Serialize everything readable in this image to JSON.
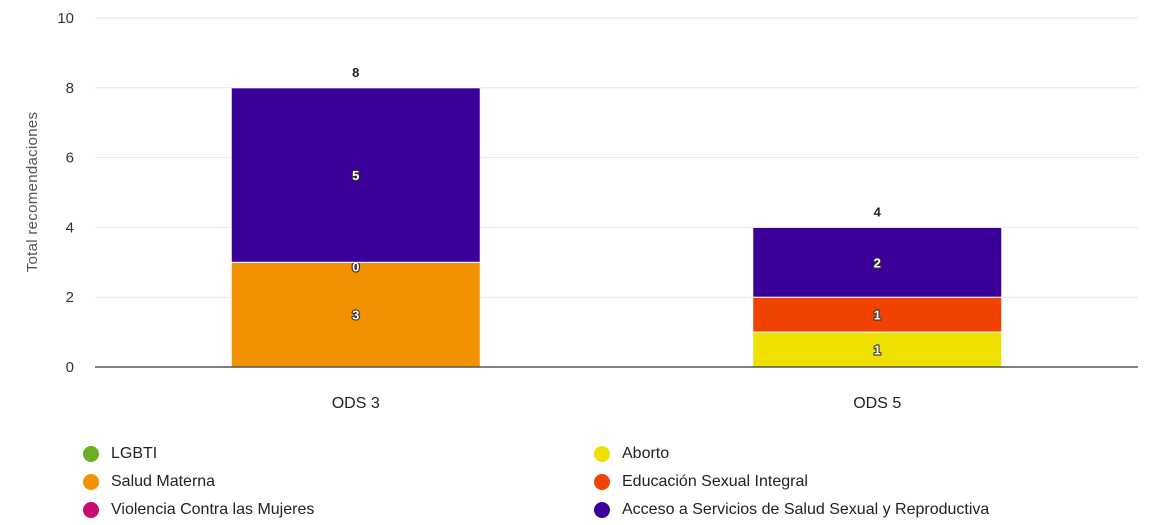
{
  "chart_data": {
    "type": "bar",
    "stacked": true,
    "title": "",
    "xlabel": "",
    "ylabel": "Total recomendaciones",
    "ylim": [
      0,
      10
    ],
    "yticks": [
      0,
      2,
      4,
      6,
      8,
      10
    ],
    "categories": [
      "ODS 3",
      "ODS 5"
    ],
    "totals": [
      8,
      4
    ],
    "series": [
      {
        "name": "Aborto",
        "color": "#f0e000",
        "values": [
          0,
          1
        ],
        "labels": [
          "",
          "1"
        ]
      },
      {
        "name": "Salud Materna",
        "color": "#f39200",
        "values": [
          3,
          0
        ],
        "labels": [
          "3",
          ""
        ]
      },
      {
        "name": "Educación Sexual Integral",
        "color": "#f04200",
        "values": [
          0,
          1
        ],
        "labels": [
          "",
          "1"
        ]
      },
      {
        "name": "LGBTI",
        "color": "#6ab023",
        "values": [
          0,
          0
        ],
        "labels": [
          "0",
          ""
        ]
      },
      {
        "name": "Violencia Contra las Mujeres",
        "color": "#cc0b6e",
        "values": [
          0,
          0
        ],
        "labels": [
          "0",
          ""
        ]
      },
      {
        "name": "Acceso a Servicios de Salud Sexual y Reproductiva",
        "color": "#3a0099",
        "values": [
          5,
          2
        ],
        "labels": [
          "5",
          "2"
        ]
      }
    ],
    "grid": true,
    "legend_position": "bottom",
    "legend": [
      {
        "name": "LGBTI",
        "color": "#6ab023"
      },
      {
        "name": "Aborto",
        "color": "#f0e000"
      },
      {
        "name": "Salud Materna",
        "color": "#f39200"
      },
      {
        "name": "Educación Sexual Integral",
        "color": "#f04200"
      },
      {
        "name": "Violencia Contra las Mujeres",
        "color": "#cc0b6e"
      },
      {
        "name": "Acceso a Servicios de Salud Sexual y Reproductiva",
        "color": "#3a0099"
      }
    ]
  }
}
